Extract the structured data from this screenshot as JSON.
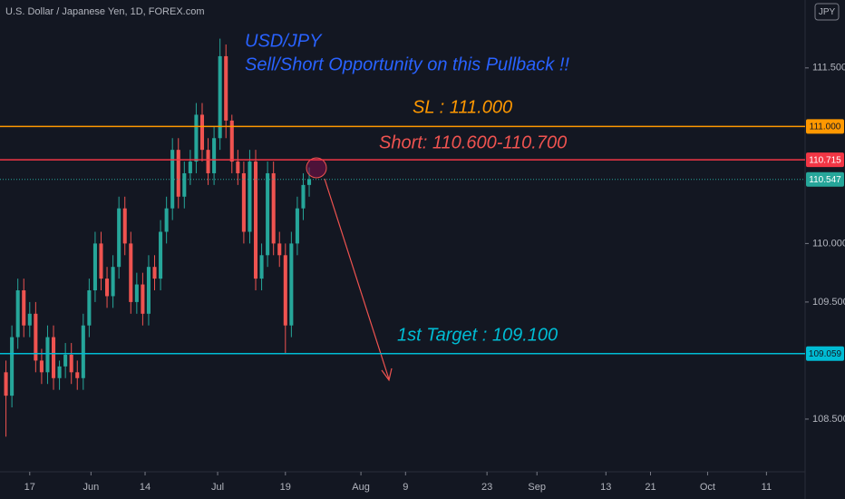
{
  "chart_data": {
    "type": "candlestick",
    "title": "U.S. Dollar / Japanese Yen, 1D, FOREX.com",
    "currency": "JPY",
    "annotations": {
      "heading": "USD/JPY",
      "subheading": "Sell/Short Opportunity on this Pullback !!",
      "stop_loss": "SL : 111.000",
      "short": "Short: 110.600-110.700",
      "target": "1st Target : 109.100"
    },
    "up_color": "#26a69a",
    "down_color": "#ef5350",
    "x": [
      1,
      2,
      3,
      4,
      5,
      6,
      7,
      8,
      9,
      10,
      11,
      12,
      13,
      14,
      15,
      16,
      17,
      18,
      19,
      20,
      21,
      22,
      23,
      24,
      25,
      26,
      27,
      28,
      29,
      30,
      31,
      32,
      33,
      34,
      35,
      36,
      37,
      38,
      39,
      40,
      41,
      42,
      43,
      44,
      45,
      46,
      47,
      48,
      49,
      50,
      51,
      52
    ],
    "open": [
      108.9,
      108.7,
      109.2,
      109.6,
      109.3,
      109.4,
      109.0,
      108.9,
      109.2,
      108.85,
      108.95,
      109.05,
      108.9,
      108.85,
      109.3,
      109.6,
      110.0,
      109.7,
      109.55,
      109.8,
      110.3,
      110.0,
      109.5,
      109.65,
      109.4,
      109.8,
      109.7,
      110.1,
      110.3,
      110.8,
      110.4,
      110.6,
      110.7,
      111.1,
      110.8,
      110.6,
      110.9,
      111.6,
      111.05,
      110.7,
      110.6,
      110.1,
      110.7,
      109.7,
      109.9,
      110.6,
      110.0,
      109.9,
      109.3,
      110.0,
      110.3,
      110.5
    ],
    "high": [
      109.0,
      109.3,
      109.7,
      109.7,
      109.5,
      109.5,
      109.1,
      109.3,
      109.3,
      109.0,
      109.15,
      109.15,
      109.0,
      109.4,
      109.7,
      110.1,
      110.1,
      109.8,
      109.9,
      110.4,
      110.4,
      110.1,
      109.75,
      109.75,
      109.9,
      109.9,
      110.2,
      110.4,
      110.9,
      110.9,
      110.7,
      110.8,
      111.2,
      111.2,
      110.9,
      111.0,
      111.75,
      111.7,
      111.1,
      110.8,
      110.7,
      110.8,
      110.8,
      110.0,
      110.7,
      110.7,
      110.1,
      110.0,
      110.1,
      110.4,
      110.6,
      110.65
    ],
    "low": [
      108.35,
      108.6,
      109.1,
      109.2,
      109.2,
      108.9,
      108.8,
      108.8,
      108.75,
      108.75,
      108.85,
      108.8,
      108.75,
      108.75,
      109.2,
      109.5,
      109.6,
      109.45,
      109.45,
      109.7,
      109.9,
      109.4,
      109.4,
      109.3,
      109.3,
      109.6,
      109.6,
      110.0,
      110.2,
      110.3,
      110.3,
      110.5,
      110.6,
      110.7,
      110.5,
      110.5,
      110.8,
      110.9,
      110.6,
      110.5,
      110.0,
      110.0,
      109.6,
      109.6,
      109.8,
      109.9,
      109.8,
      109.06,
      109.2,
      109.9,
      110.2,
      110.4
    ],
    "close": [
      108.7,
      109.2,
      109.6,
      109.3,
      109.4,
      109.0,
      108.9,
      109.2,
      108.85,
      108.95,
      109.05,
      108.9,
      108.85,
      109.3,
      109.6,
      110.0,
      109.7,
      109.55,
      109.8,
      110.3,
      110.0,
      109.5,
      109.65,
      109.4,
      109.8,
      109.7,
      110.1,
      110.3,
      110.8,
      110.4,
      110.6,
      110.7,
      111.1,
      110.8,
      110.6,
      110.9,
      111.6,
      111.05,
      110.7,
      110.6,
      110.1,
      110.7,
      109.7,
      109.9,
      110.6,
      110.0,
      109.9,
      109.3,
      110.0,
      110.3,
      110.5,
      110.55
    ],
    "xlim": [
      0,
      135.4
    ],
    "xticks": [
      {
        "value": 5.0,
        "label": "17"
      },
      {
        "value": 15.3,
        "label": "Jun"
      },
      {
        "value": 24.4,
        "label": "14"
      },
      {
        "value": 36.6,
        "label": "Jul"
      },
      {
        "value": 48,
        "label": "19"
      },
      {
        "value": 60.7,
        "label": "Aug"
      },
      {
        "value": 68.2,
        "label": "9"
      },
      {
        "value": 81.9,
        "label": "23"
      },
      {
        "value": 90.3,
        "label": "Sep"
      },
      {
        "value": 101.9,
        "label": "13"
      },
      {
        "value": 109.4,
        "label": "21"
      },
      {
        "value": 119,
        "label": "Oct"
      },
      {
        "value": 128.9,
        "label": "11"
      }
    ],
    "ylim": [
      108.05,
      112.08
    ],
    "yticks": [
      {
        "value": 108.5,
        "label": "108.500"
      },
      {
        "value": 109.5,
        "label": "109.500"
      },
      {
        "value": 110,
        "label": "110.000"
      },
      {
        "value": 111.5,
        "label": "111.500"
      }
    ],
    "price_lines": [
      {
        "value": 111,
        "label": "111.000",
        "color": "#ff9800",
        "style": "solid"
      },
      {
        "value": 110.715,
        "label": "110.715",
        "color": "#f23645",
        "style": "solid"
      },
      {
        "value": 110.547,
        "label": "110.547",
        "color": "#26a69a",
        "style": "dotted"
      },
      {
        "value": 109.059,
        "label": "109.059",
        "color": "#00bcd4",
        "style": "solid"
      }
    ]
  }
}
